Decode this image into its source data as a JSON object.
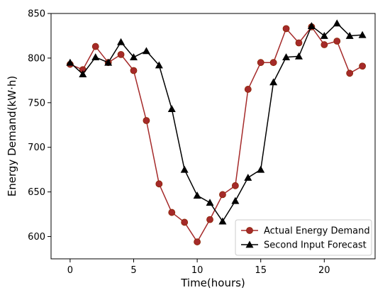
{
  "chart_data": {
    "type": "line",
    "title": "",
    "xlabel": "Time(hours)",
    "ylabel": "Energy Demand(kW·h)",
    "xlim": [
      -1.5,
      24
    ],
    "ylim": [
      575,
      850
    ],
    "xticks": [
      0,
      5,
      10,
      15,
      20
    ],
    "yticks": [
      600,
      650,
      700,
      750,
      800,
      850
    ],
    "grid": false,
    "legend_position": "bottom-right",
    "x": [
      0,
      1,
      2,
      3,
      4,
      5,
      6,
      7,
      8,
      9,
      10,
      11,
      12,
      13,
      14,
      15,
      16,
      17,
      18,
      19,
      20,
      21,
      22,
      23
    ],
    "series": [
      {
        "name": "Actual Energy Demand",
        "color": "#a52a2a",
        "marker": "circle",
        "values": [
          793,
          787,
          813,
          795,
          804,
          786,
          730,
          659,
          627,
          616,
          594,
          619,
          647,
          657,
          765,
          795,
          795,
          833,
          817,
          835,
          815,
          819,
          783,
          791
        ]
      },
      {
        "name": "Second Input Forecast",
        "color": "#000000",
        "marker": "triangle",
        "values": [
          795,
          782,
          801,
          795,
          818,
          801,
          808,
          792,
          743,
          675,
          646,
          638,
          617,
          640,
          666,
          675,
          773,
          801,
          802,
          836,
          825,
          839,
          825,
          826
        ]
      }
    ]
  }
}
